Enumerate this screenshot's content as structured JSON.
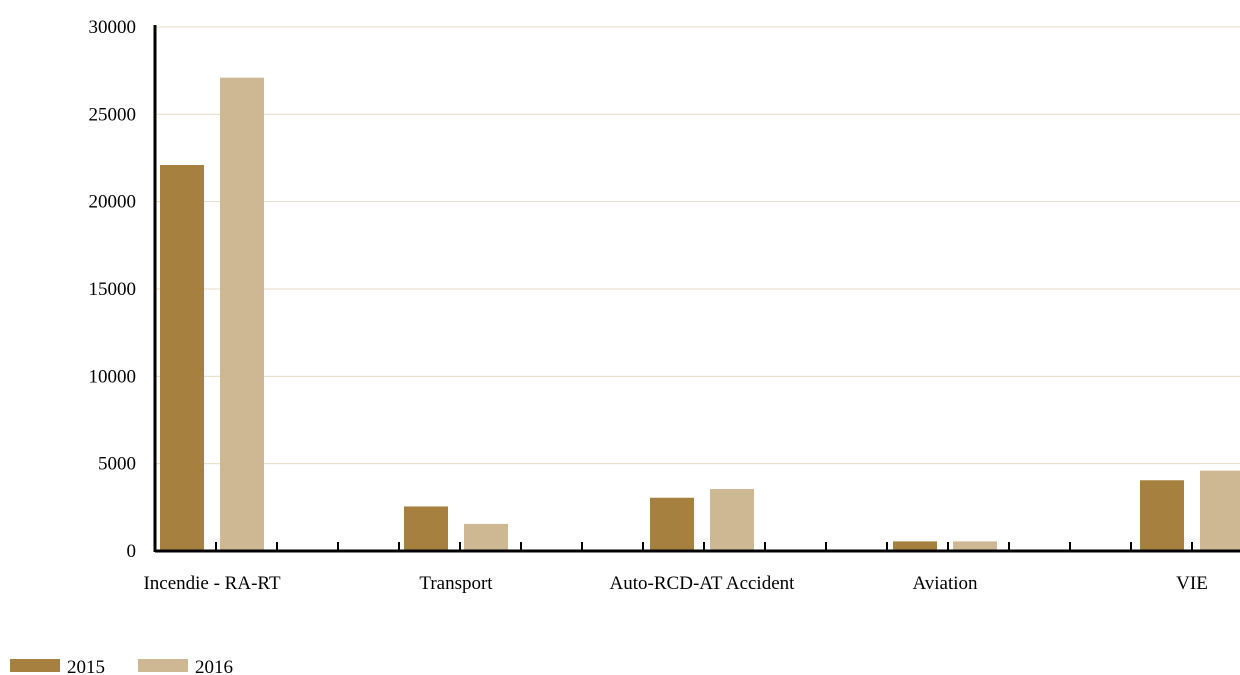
{
  "chart_data": {
    "type": "bar",
    "title": "",
    "xlabel": "",
    "ylabel": "",
    "categories": [
      "Incendie - RA-RT",
      "Transport",
      "Auto-RCD-AT Accident",
      "Aviation",
      "VIE"
    ],
    "series": [
      {
        "name": "2015",
        "color": "#a5803e",
        "values": [
          22100,
          2550,
          3050,
          550,
          4050
        ]
      },
      {
        "name": "2016",
        "color": "#cdb893",
        "values": [
          27100,
          1550,
          3550,
          550,
          4600
        ]
      }
    ],
    "ylim": [
      0,
      30000
    ],
    "yticks": [
      0,
      5000,
      10000,
      15000,
      20000,
      25000,
      30000
    ],
    "grid": true,
    "grid_color": "#e6dcc8",
    "legend_position": "bottom-left"
  }
}
